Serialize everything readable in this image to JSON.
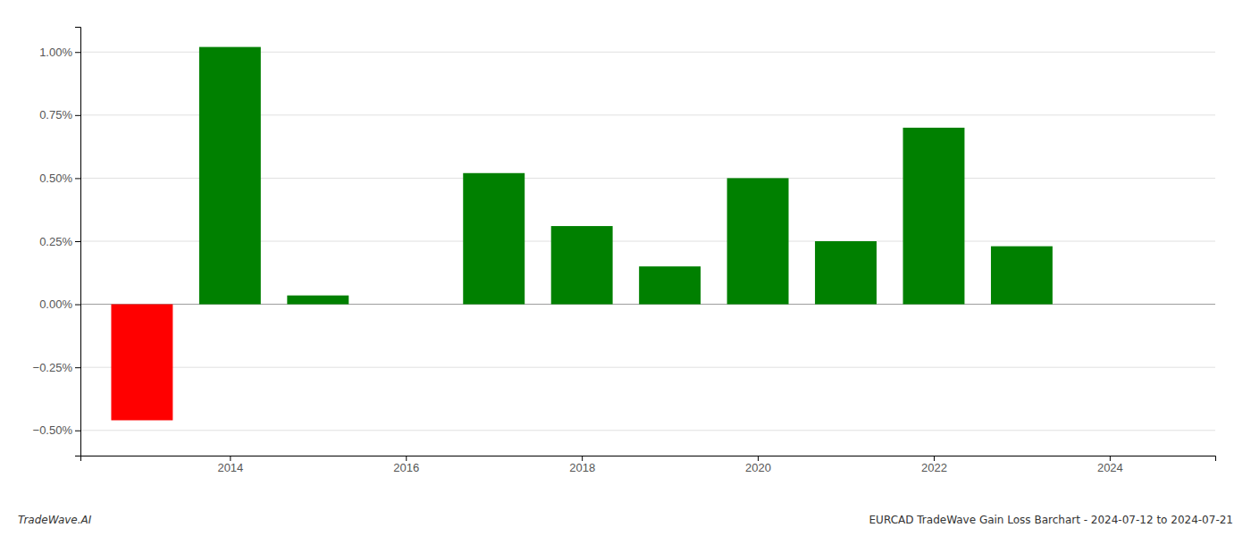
{
  "chart_data": {
    "type": "bar",
    "annotations": [
      "TradeWave.AI",
      "EURCAD TradeWave Gain Loss Barchart - 2024-07-12 to 2024-07-21"
    ],
    "x": [
      2013,
      2014,
      2015,
      2017,
      2018,
      2019,
      2020,
      2021,
      2022,
      2023
    ],
    "values": [
      -0.46,
      1.02,
      0.035,
      0.52,
      0.31,
      0.15,
      0.5,
      0.25,
      0.7,
      0.23
    ],
    "colors": [
      "#ff0000",
      "#008000",
      "#008000",
      "#008000",
      "#008000",
      "#008000",
      "#008000",
      "#008000",
      "#008000",
      "#008000"
    ],
    "xlim": [
      2012.3,
      2025.2
    ],
    "xticks": [
      2014,
      2016,
      2018,
      2020,
      2022,
      2024
    ],
    "ylim": [
      -0.6,
      1.1
    ],
    "yticks": [
      {
        "value": -0.5,
        "label": "−0.50%"
      },
      {
        "value": -0.25,
        "label": "−0.25%"
      },
      {
        "value": 0.0,
        "label": "0.00%"
      },
      {
        "value": 0.25,
        "label": "0.25%"
      },
      {
        "value": 0.5,
        "label": "0.50%"
      },
      {
        "value": 0.75,
        "label": "0.75%"
      },
      {
        "value": 1.0,
        "label": "1.00%"
      }
    ],
    "grid": true
  }
}
